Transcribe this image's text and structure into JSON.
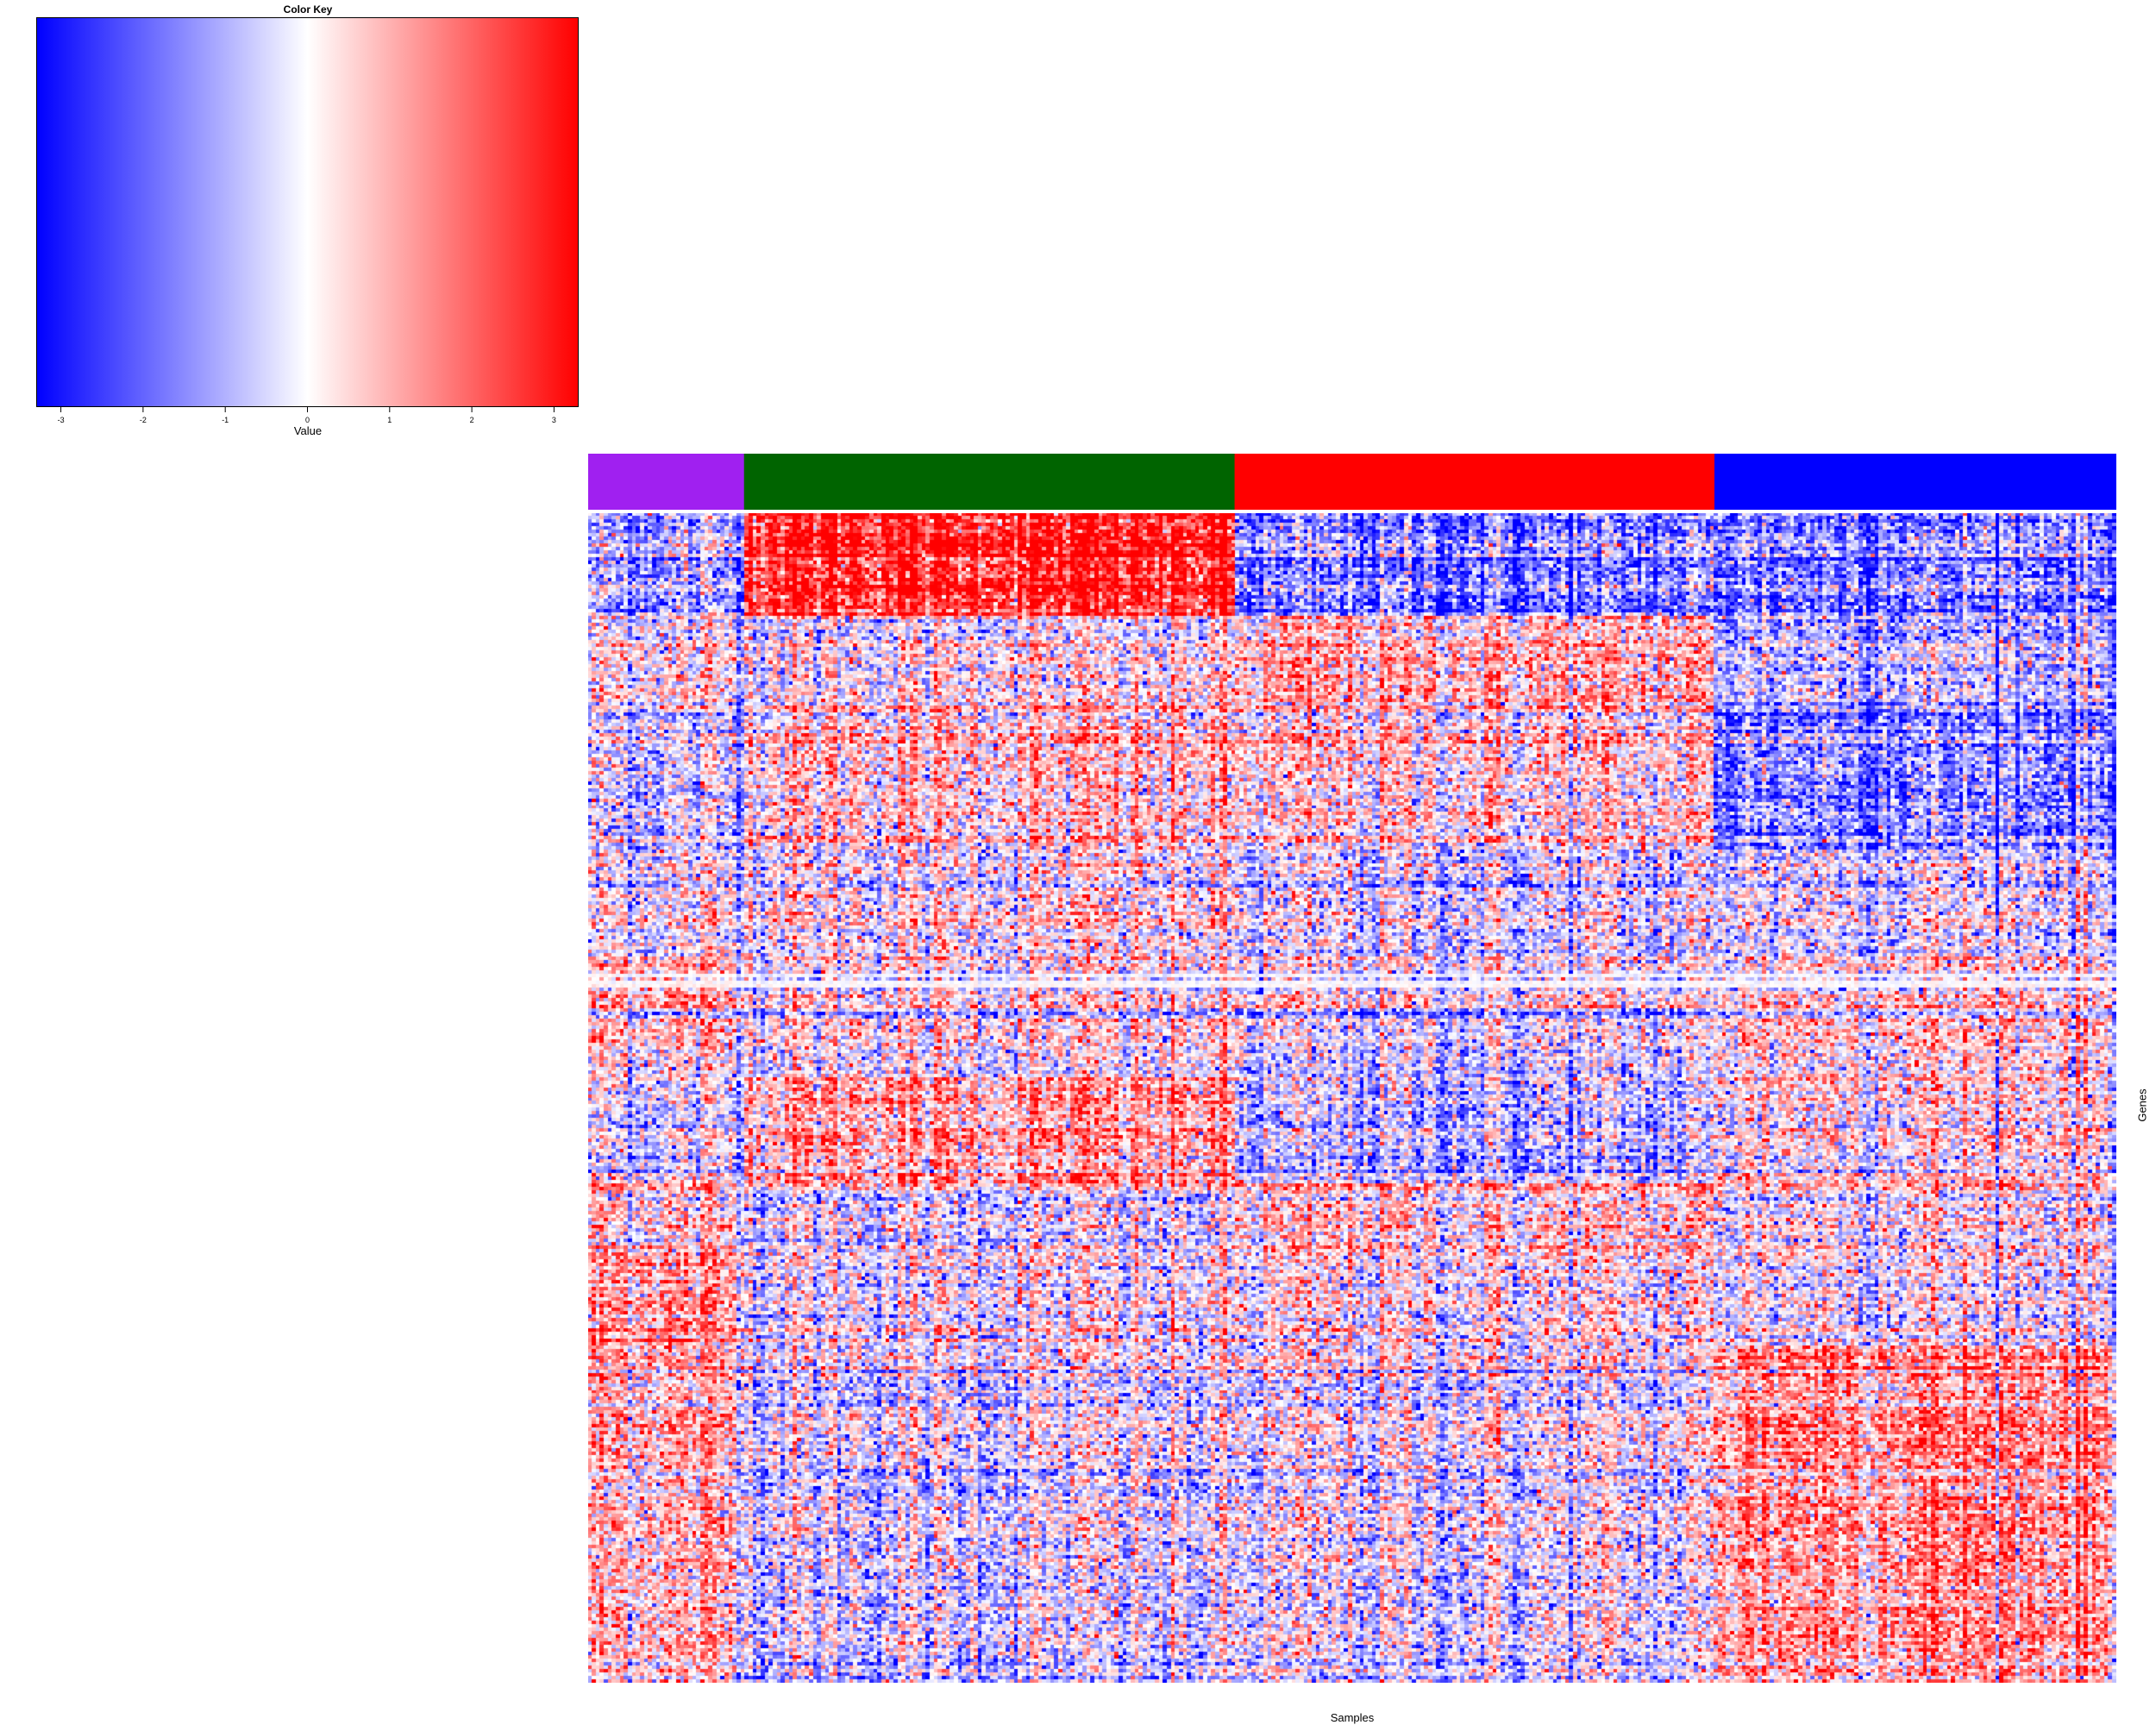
{
  "chart_data": {
    "type": "heatmap",
    "title": "",
    "xlabel": "Samples",
    "ylabel": "Genes",
    "color_key": {
      "title": "Color Key",
      "xlabel": "Value",
      "range": [
        -3.3,
        3.3
      ],
      "ticks": [
        -3,
        -2,
        -1,
        0,
        1,
        2,
        3
      ],
      "colors": [
        "#0000ff",
        "#ffffff",
        "#ff0000"
      ]
    },
    "sample_groups": [
      {
        "color": "#a020f0",
        "fraction": 0.102
      },
      {
        "color": "#006400",
        "fraction": 0.321
      },
      {
        "color": "#ff0000",
        "fraction": 0.314
      },
      {
        "color": "#0000ff",
        "fraction": 0.263
      }
    ],
    "gene_blocks": [
      {
        "fraction": 0.088,
        "pattern": [
          -1.2,
          2.8,
          -1.8,
          -1.6
        ]
      },
      {
        "fraction": 0.075,
        "pattern": [
          0.2,
          0.1,
          0.8,
          -0.7
        ]
      },
      {
        "fraction": 0.125,
        "pattern": [
          -0.6,
          0.5,
          0.3,
          -1.5
        ]
      },
      {
        "fraction": 0.095,
        "pattern": [
          0.2,
          0.3,
          -0.3,
          0.0
        ]
      },
      {
        "fraction": 0.04,
        "pattern": [
          0.8,
          -0.1,
          -0.3,
          0.2
        ],
        "light": true
      },
      {
        "fraction": 0.06,
        "pattern": [
          0.4,
          0.1,
          -0.5,
          0.5
        ]
      },
      {
        "fraction": 0.09,
        "pattern": [
          -0.2,
          1.2,
          -0.8,
          0.5
        ]
      },
      {
        "fraction": 0.06,
        "pattern": [
          0.5,
          -0.3,
          0.5,
          0.2
        ]
      },
      {
        "fraction": 0.08,
        "pattern": [
          1.2,
          -0.1,
          0.0,
          0.0
        ]
      },
      {
        "fraction": 0.187,
        "pattern": [
          0.8,
          -0.4,
          -0.3,
          1.4
        ]
      }
    ],
    "n_rows": 340,
    "n_cols": 380
  }
}
